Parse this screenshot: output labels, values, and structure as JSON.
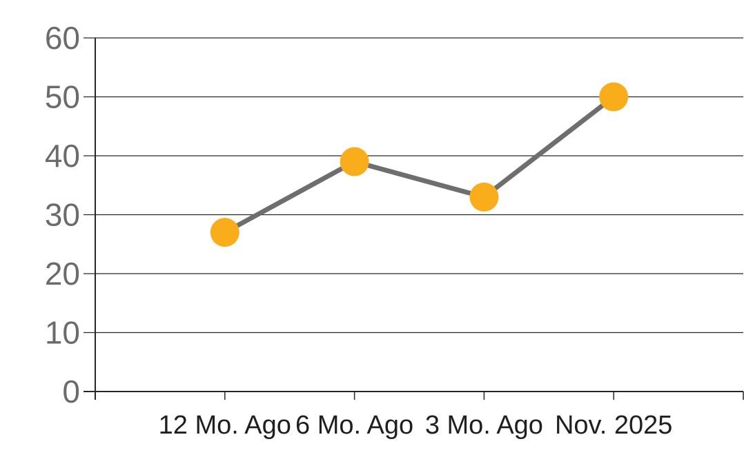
{
  "chart_data": {
    "type": "line",
    "categories": [
      "12 Mo. Ago",
      "6 Mo. Ago",
      "3 Mo. Ago",
      "Nov. 2025"
    ],
    "values": [
      27,
      39,
      33,
      50
    ],
    "y_ticks": [
      0,
      10,
      20,
      30,
      40,
      50,
      60
    ],
    "y_tick_labels": [
      "0",
      "10",
      "20",
      "30",
      "40",
      "50",
      "60"
    ],
    "ylim": [
      0,
      60
    ],
    "grid": true,
    "legend": "none",
    "marker_shape": "circle",
    "colors": {
      "marker": "#FAAD1A",
      "line": "#6E6E6E",
      "gridline": "#262626",
      "axis": "#262626",
      "y_tick_label": "#6B6B6B",
      "x_tick_label": "#1F1F1F",
      "background": "#FFFFFF"
    }
  }
}
